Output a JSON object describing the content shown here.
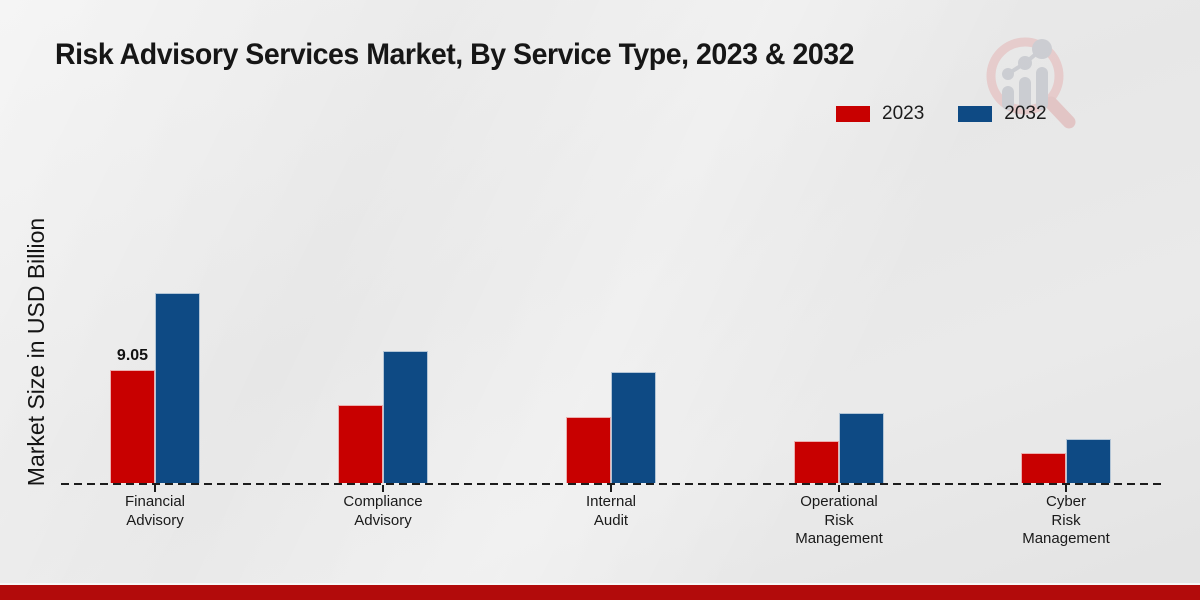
{
  "page": {
    "title": "Risk Advisory Services Market, By Service Type, 2023 & 2032"
  },
  "ylabel": "Market Size in USD Billion",
  "legend": {
    "items": [
      {
        "label": "2023",
        "color": "#c80000"
      },
      {
        "label": "2032",
        "color": "#0e4a84"
      }
    ]
  },
  "chart_data": {
    "type": "bar",
    "title": "Risk Advisory Services Market, By Service Type, 2023 & 2032",
    "xlabel": "",
    "ylabel": "Market Size in USD Billion",
    "categories": [
      "Financial Advisory",
      "Compliance Advisory",
      "Internal Audit",
      "Operational Risk Management",
      "Cyber Risk Management"
    ],
    "category_label_lines": [
      [
        "Financial",
        "Advisory"
      ],
      [
        "Compliance",
        "Advisory"
      ],
      [
        "Internal",
        "Audit"
      ],
      [
        "Operational",
        "Risk",
        "Management"
      ],
      [
        "Cyber",
        "Risk",
        "Management"
      ]
    ],
    "series": [
      {
        "name": "2023",
        "color": "#c80000",
        "values": [
          9.05,
          6.25,
          5.28,
          3.36,
          2.4
        ],
        "data_labels": [
          "9.05",
          null,
          null,
          null,
          null
        ]
      },
      {
        "name": "2032",
        "color": "#0e4a84",
        "values": [
          15.21,
          10.57,
          8.89,
          5.61,
          3.52
        ],
        "data_labels": [
          null,
          null,
          null,
          null,
          null
        ]
      }
    ],
    "ylim": [
      0,
      16.5
    ],
    "grid": false,
    "axis_style": "dashed baseline only, no y-axis ticks",
    "legend_position": "top-right"
  },
  "colors": {
    "background": "#e9e9e9",
    "footer_strip": "#b20b0b",
    "bar_2023": "#c80000",
    "bar_2032": "#0e4a84",
    "text": "#1a1a1a"
  }
}
